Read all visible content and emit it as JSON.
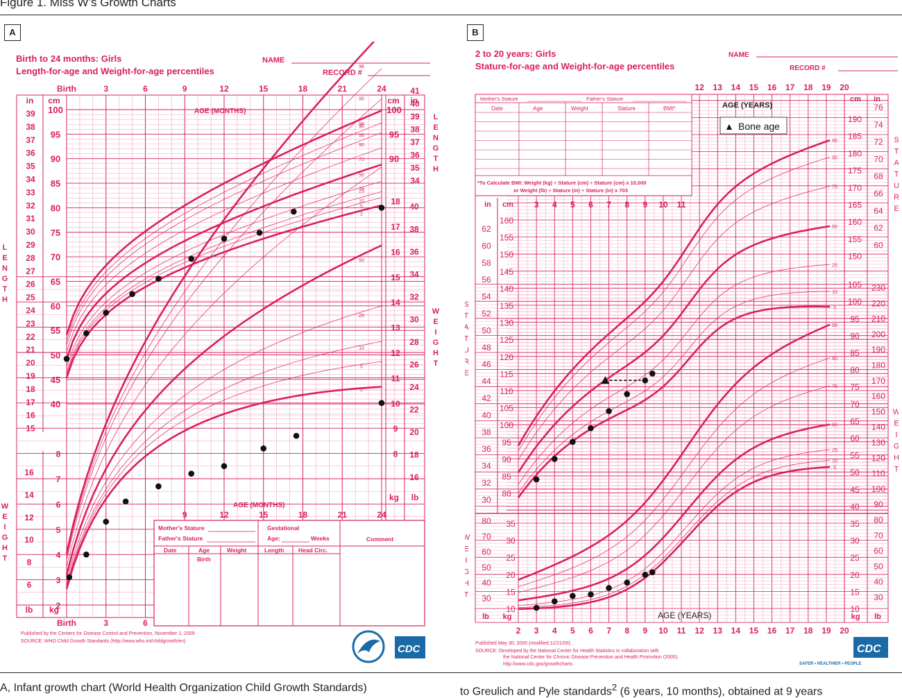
{
  "figure_title": "Figure 1. Miss W’s Growth Charts",
  "caption_left": "A, Infant growth chart (World Health Organization Child Growth Standards)",
  "caption_right": "to Greulich and Pyle standards",
  "caption_right_sup": "2",
  "caption_right_tail": " (6 years, 10 months), obtained at 9 years",
  "colors": {
    "chart": "#d81f5c",
    "light_grid": "#f2a0bd",
    "dot": "#111111",
    "text": "#231f20"
  },
  "panel_a": {
    "label": "A",
    "title1": "Birth to 24 months: Girls",
    "title2": "Length-for-age and Weight-for-age percentiles",
    "name_label": "NAME",
    "record_label": "RECORD #",
    "axis_age_label": "AGE (MONTHS)",
    "top_ticks": [
      "Birth",
      "3",
      "6",
      "9",
      "12",
      "15",
      "18",
      "21",
      "24"
    ],
    "bottom_ticks": [
      "Birth",
      "3",
      "6"
    ],
    "left_length_label": "LENGTH",
    "right_length_label": "LENGTH",
    "weight_label": "WEIGHT",
    "unit_in": "in",
    "unit_cm": "cm",
    "unit_lb": "lb",
    "unit_kg": "kg",
    "length_in_ticks": [
      "39",
      "38",
      "37",
      "36",
      "35",
      "34",
      "33",
      "32",
      "31",
      "30",
      "29",
      "28",
      "27",
      "26",
      "25",
      "24",
      "23",
      "22",
      "21",
      "20",
      "19",
      "18",
      "17",
      "16",
      "15"
    ],
    "length_cm_ticks": [
      "100",
      "95",
      "90",
      "85",
      "80",
      "75",
      "70",
      "65",
      "60",
      "55",
      "50",
      "45",
      "40"
    ],
    "right_cm_ticks": [
      "100",
      "95",
      "90"
    ],
    "right_in_ticks": [
      "41",
      "40",
      "39",
      "38",
      "37",
      "36",
      "35",
      "34"
    ],
    "right_weight_kg_ticks": [
      "18",
      "17",
      "16",
      "15",
      "14",
      "13",
      "12",
      "11",
      "10",
      "9",
      "8"
    ],
    "right_weight_lb_ticks": [
      "40",
      "38",
      "36",
      "34",
      "32",
      "30",
      "28",
      "26",
      "24",
      "22",
      "20",
      "18",
      "16"
    ],
    "left_weight_lb_ticks": [
      "16",
      "14",
      "12",
      "10",
      "8",
      "6"
    ],
    "left_weight_kg_ticks": [
      "8",
      "7",
      "6",
      "5",
      "4",
      "3",
      "2"
    ],
    "length_percentiles": [
      "98",
      "95",
      "90",
      "75",
      "50",
      "25",
      "10",
      "5",
      "2"
    ],
    "weight_percentiles": [
      "98",
      "95",
      "90",
      "75",
      "50",
      "25",
      "10",
      "5",
      "2"
    ],
    "table_header1": "Mother's Stature",
    "table_header2": "Father's Stature",
    "gestational": "Gestational",
    "age_label": "Age:",
    "weeks_label": "Weeks",
    "comment_label": "Comment",
    "cols": [
      "Date",
      "Age",
      "Weight",
      "Length",
      "Head Circ."
    ],
    "col_sub": "Birth",
    "footer1": "Published by the Centers for Disease Control and Prevention, November 1, 2009",
    "footer2": "SOURCE: WHO Child Growth Standards (http://www.who.int/childgrowth/en)",
    "cdc_logo": "CDC"
  },
  "panel_b": {
    "label": "B",
    "title1": "2 to 20 years: Girls",
    "title2": "Stature-for-age and Weight-for-age percentiles",
    "name_label": "NAME",
    "record_label": "RECORD #",
    "axis_age_label": "AGE (YEARS)",
    "legend_symbol": "▲",
    "legend_label": "Bone age",
    "top_ticks": [
      "12",
      "13",
      "14",
      "15",
      "16",
      "17",
      "18",
      "19",
      "20"
    ],
    "mid_ticks": [
      "3",
      "4",
      "5",
      "6",
      "7",
      "8",
      "9",
      "10",
      "11"
    ],
    "bottom_ticks": [
      "2",
      "3",
      "4",
      "5",
      "6",
      "7",
      "8",
      "9",
      "10",
      "11",
      "12",
      "13",
      "14",
      "15",
      "16",
      "17",
      "18",
      "19",
      "20"
    ],
    "unit_in": "in",
    "unit_cm": "cm",
    "unit_lb": "lb",
    "unit_kg": "kg",
    "table_head": [
      "Date",
      "Age",
      "Weight",
      "Stature",
      "BMI*"
    ],
    "mothers_stature": "Mother's Stature",
    "fathers_stature": "Father's Stature",
    "bmi_note1": "*To Calculate BMI: Weight (kg) ÷ Stature (cm) ÷ Stature (cm) x 10,000",
    "bmi_note2": "or Weight (lb) ÷ Stature (in) ÷ Stature (in) x 703",
    "stature_label": "STATURE",
    "weight_label": "WEIGHT",
    "stature_cm_ticks": [
      "160",
      "155",
      "150",
      "145",
      "140",
      "135",
      "130",
      "125",
      "120",
      "115",
      "110",
      "105",
      "100",
      "95",
      "90",
      "85",
      "80"
    ],
    "stature_in_ticks": [
      "62",
      "60",
      "58",
      "56",
      "54",
      "52",
      "50",
      "48",
      "46",
      "44",
      "42",
      "40",
      "38",
      "36",
      "34",
      "32",
      "30"
    ],
    "right_cm_ticks": [
      "190",
      "185",
      "180",
      "175",
      "170",
      "165",
      "160",
      "155",
      "150"
    ],
    "right_in_ticks": [
      "76",
      "74",
      "72",
      "70",
      "68",
      "66",
      "64",
      "62",
      "60"
    ],
    "right_kg_ticks": [
      "105",
      "100",
      "95",
      "90",
      "85",
      "80",
      "75",
      "70",
      "65",
      "60",
      "55",
      "50",
      "45",
      "40",
      "35",
      "30",
      "25",
      "20",
      "15",
      "10"
    ],
    "right_lb_ticks": [
      "230",
      "220",
      "210",
      "200",
      "190",
      "180",
      "170",
      "160",
      "150",
      "140",
      "130",
      "120",
      "110",
      "100",
      "90",
      "80",
      "70",
      "60",
      "50",
      "40",
      "30"
    ],
    "left_kg_ticks": [
      "35",
      "30",
      "25",
      "20",
      "15",
      "10"
    ],
    "left_lb_ticks": [
      "80",
      "70",
      "60",
      "50",
      "40",
      "30"
    ],
    "stature_percentiles": [
      "95",
      "90",
      "75",
      "50",
      "25",
      "10",
      "5"
    ],
    "weight_percentiles": [
      "95",
      "90",
      "75",
      "50",
      "25",
      "10",
      "5"
    ],
    "footer1": "Published May 30, 2000 (modified 11/21/00).",
    "footer2": "SOURCE: Developed by the National Center for Health Statistics in collaboration with",
    "footer3": "the National Center for Chronic Disease Prevention and Health Promotion (2000).",
    "footer4": "http://www.cdc.gov/growthcharts",
    "cdc_logo": "CDC",
    "cdc_tag": "SAFER • HEALTHIER • PEOPLE"
  },
  "chart_data": [
    {
      "type": "scatter",
      "title": "Birth to 24 months: Girls — Length-for-age",
      "xlabel": "AGE (MONTHS)",
      "ylabel": "cm",
      "xlim": [
        0,
        24
      ],
      "ylim": [
        40,
        100
      ],
      "series": [
        {
          "name": "Length",
          "x": [
            0,
            1.5,
            3,
            5,
            7,
            9.5,
            12,
            14.7,
            17.3,
            24
          ],
          "y": [
            49.2,
            54.4,
            58.6,
            62.4,
            65.5,
            69.6,
            73.7,
            74.9,
            79.2,
            80
          ]
        }
      ]
    },
    {
      "type": "scatter",
      "title": "Birth to 24 months: Girls — Weight-for-age",
      "xlabel": "AGE (MONTHS)",
      "ylabel": "kg",
      "xlim": [
        0,
        24
      ],
      "ylim": [
        2,
        18
      ],
      "series": [
        {
          "name": "Weight",
          "x": [
            0.2,
            1.5,
            3,
            4.5,
            7,
            9.5,
            12,
            15,
            17.5,
            24
          ],
          "y": [
            3.1,
            4.0,
            5.3,
            6.1,
            6.7,
            7.2,
            7.5,
            8.2,
            8.7,
            10.0
          ]
        }
      ]
    },
    {
      "type": "scatter",
      "title": "2 to 20 years: Girls — Stature-for-age",
      "xlabel": "AGE (YEARS)",
      "ylabel": "cm",
      "xlim": [
        2,
        20
      ],
      "ylim": [
        80,
        160
      ],
      "series": [
        {
          "name": "Stature",
          "x": [
            3,
            4,
            5,
            6,
            7,
            8,
            9,
            9.4
          ],
          "y": [
            84,
            90,
            95,
            99,
            104,
            109,
            113,
            115
          ]
        },
        {
          "name": "Bone age",
          "x": [
            6.8
          ],
          "y": [
            113
          ]
        }
      ]
    },
    {
      "type": "scatter",
      "title": "2 to 20 years: Girls — Weight-for-age",
      "xlabel": "AGE (YEARS)",
      "ylabel": "kg",
      "xlim": [
        2,
        20
      ],
      "ylim": [
        10,
        105
      ],
      "series": [
        {
          "name": "Weight",
          "x": [
            3,
            4,
            5,
            6,
            7,
            8,
            9,
            9.4
          ],
          "y": [
            10.2,
            12.1,
            13.7,
            14.1,
            16,
            17.6,
            19.9,
            20.6
          ]
        }
      ]
    }
  ]
}
